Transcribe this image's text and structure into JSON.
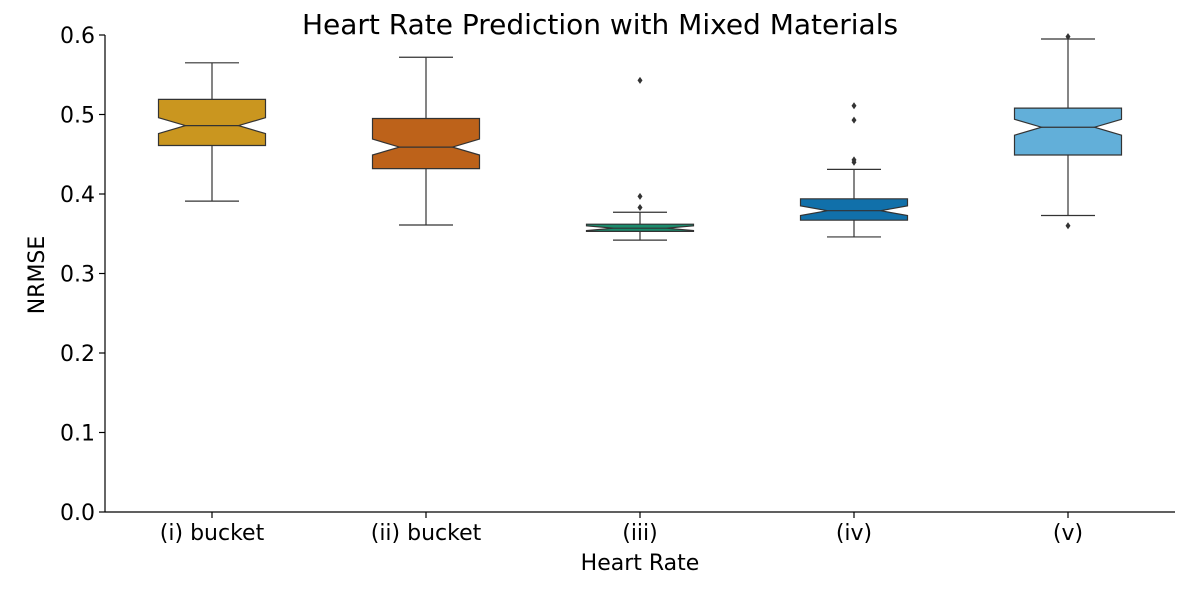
{
  "chart_data": {
    "type": "box",
    "title": "Heart Rate Prediction with Mixed Materials",
    "xlabel": "Heart Rate",
    "ylabel": "NRMSE",
    "ylim": [
      0.0,
      0.6
    ],
    "yticks": [
      "0.0",
      "0.1",
      "0.2",
      "0.3",
      "0.4",
      "0.5",
      "0.6"
    ],
    "notched": true,
    "grid": false,
    "categories": [
      "(i) bucket",
      "(ii) bucket",
      "(iii)",
      "(iv)",
      "(v)"
    ],
    "boxes": [
      {
        "category": "(i) bucket",
        "color": "#ca961f",
        "whisker_low": 0.391,
        "q1": 0.461,
        "median": 0.486,
        "q3": 0.519,
        "whisker_high": 0.565,
        "notch_low": 0.476,
        "notch_high": 0.496,
        "outliers": []
      },
      {
        "category": "(ii) bucket",
        "color": "#bd621a",
        "whisker_low": 0.361,
        "q1": 0.432,
        "median": 0.459,
        "q3": 0.495,
        "whisker_high": 0.572,
        "notch_low": 0.449,
        "notch_high": 0.469,
        "outliers": []
      },
      {
        "category": "(iii)",
        "color": "#1b8b6c",
        "whisker_low": 0.342,
        "q1": 0.353,
        "median": 0.357,
        "q3": 0.362,
        "whisker_high": 0.377,
        "notch_low": 0.354,
        "notch_high": 0.36,
        "outliers": [
          0.383,
          0.397,
          0.543
        ]
      },
      {
        "category": "(iv)",
        "color": "#1170aa",
        "whisker_low": 0.346,
        "q1": 0.367,
        "median": 0.379,
        "q3": 0.394,
        "whisker_high": 0.431,
        "notch_low": 0.373,
        "notch_high": 0.385,
        "outliers": [
          0.44,
          0.443,
          0.493,
          0.511
        ]
      },
      {
        "category": "(v)",
        "color": "#62afd9",
        "whisker_low": 0.373,
        "q1": 0.449,
        "median": 0.484,
        "q3": 0.508,
        "whisker_high": 0.595,
        "notch_low": 0.474,
        "notch_high": 0.494,
        "outliers": [
          0.36,
          0.598
        ]
      }
    ]
  }
}
